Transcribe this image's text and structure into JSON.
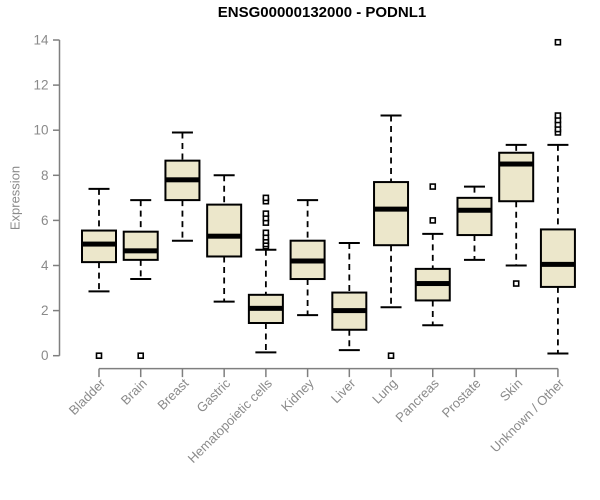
{
  "chart_data": {
    "type": "boxplot",
    "title": "ENSG00000132000 - PODNL1",
    "ylabel": "Expression",
    "xlabel": "",
    "ylim": [
      0,
      14
    ],
    "yticks": [
      0,
      2,
      4,
      6,
      8,
      10,
      12,
      14
    ],
    "grid": false,
    "legend": "none",
    "categories": [
      "Bladder",
      "Brain",
      "Breast",
      "Gastric",
      "Hematopoietic cells",
      "Kidney",
      "Liver",
      "Lung",
      "Pancreas",
      "Prostate",
      "Skin",
      "Unknown / Other"
    ],
    "series": [
      {
        "category": "Bladder",
        "whisker_low": 2.85,
        "q1": 4.15,
        "median": 4.95,
        "q3": 5.55,
        "whisker_high": 7.4,
        "outliers": [
          0.0
        ]
      },
      {
        "category": "Brain",
        "whisker_low": 3.4,
        "q1": 4.25,
        "median": 4.65,
        "q3": 5.5,
        "whisker_high": 6.9,
        "outliers": [
          0.0
        ]
      },
      {
        "category": "Breast",
        "whisker_low": 5.1,
        "q1": 6.9,
        "median": 7.8,
        "q3": 8.65,
        "whisker_high": 9.9,
        "outliers": []
      },
      {
        "category": "Gastric",
        "whisker_low": 2.4,
        "q1": 4.4,
        "median": 5.3,
        "q3": 6.7,
        "whisker_high": 8.0,
        "outliers": []
      },
      {
        "category": "Hematopoietic cells",
        "whisker_low": 0.15,
        "q1": 1.45,
        "median": 2.1,
        "q3": 2.7,
        "whisker_high": 4.7,
        "outliers": [
          4.85,
          4.95,
          5.1,
          5.25,
          5.45,
          5.9,
          6.1,
          6.3,
          6.85,
          7.0
        ]
      },
      {
        "category": "Kidney",
        "whisker_low": 1.8,
        "q1": 3.4,
        "median": 4.2,
        "q3": 5.1,
        "whisker_high": 6.9,
        "outliers": []
      },
      {
        "category": "Liver",
        "whisker_low": 0.25,
        "q1": 1.15,
        "median": 2.0,
        "q3": 2.8,
        "whisker_high": 5.0,
        "outliers": []
      },
      {
        "category": "Lung",
        "whisker_low": 2.15,
        "q1": 4.9,
        "median": 6.5,
        "q3": 7.7,
        "whisker_high": 10.65,
        "outliers": [
          0.0
        ]
      },
      {
        "category": "Pancreas",
        "whisker_low": 1.35,
        "q1": 2.45,
        "median": 3.2,
        "q3": 3.85,
        "whisker_high": 5.4,
        "outliers": [
          6.0,
          7.5
        ]
      },
      {
        "category": "Prostate",
        "whisker_low": 4.25,
        "q1": 5.35,
        "median": 6.45,
        "q3": 7.0,
        "whisker_high": 7.5,
        "outliers": []
      },
      {
        "category": "Skin",
        "whisker_low": 4.0,
        "q1": 6.85,
        "median": 8.5,
        "q3": 9.0,
        "whisker_high": 9.35,
        "outliers": [
          3.2
        ]
      },
      {
        "category": "Unknown / Other",
        "whisker_low": 0.1,
        "q1": 3.05,
        "median": 4.05,
        "q3": 5.6,
        "whisker_high": 9.35,
        "outliers": [
          9.9,
          10.05,
          10.25,
          10.45,
          10.65,
          13.9
        ]
      }
    ],
    "colors": {
      "box_fill": "#ECE7CB",
      "box_border": "#000000",
      "median": "#000000",
      "whisker": "#000000",
      "outlier_fill": "#FFFFFF",
      "axis": "#7F7F7F",
      "tick_label": "#8A8A8A",
      "title": "#000000"
    }
  }
}
